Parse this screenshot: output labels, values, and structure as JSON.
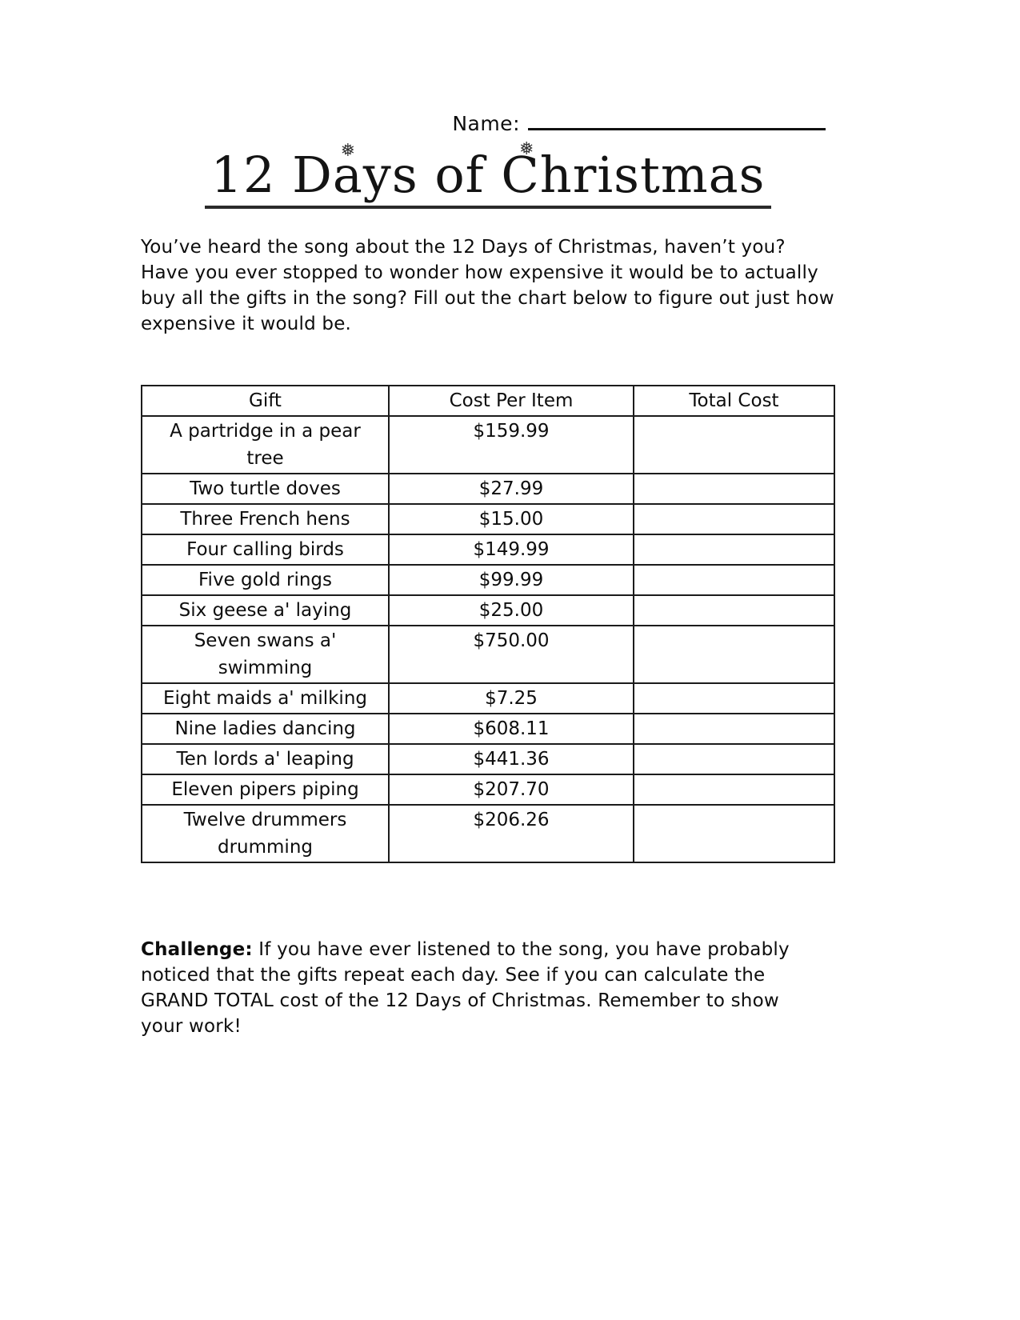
{
  "header": {
    "name_label": "Name:",
    "title": "12 Days of Christmas"
  },
  "decorations": {
    "snowflake_icon": "❅"
  },
  "intro": "You’ve heard the song about the 12 Days of Christmas, haven’t you? Have you ever stopped to wonder how expensive it would be to actually buy all the gifts in the song? Fill out the chart below to figure out just how expensive it would be.",
  "table": {
    "headers": [
      "Gift",
      "Cost Per Item",
      "Total Cost"
    ],
    "rows": [
      {
        "gift": "A partridge in a pear tree",
        "cost": "$159.99",
        "total": ""
      },
      {
        "gift": "Two turtle doves",
        "cost": "$27.99",
        "total": ""
      },
      {
        "gift": "Three French hens",
        "cost": "$15.00",
        "total": ""
      },
      {
        "gift": "Four calling birds",
        "cost": "$149.99",
        "total": ""
      },
      {
        "gift": "Five gold rings",
        "cost": "$99.99",
        "total": ""
      },
      {
        "gift": "Six geese a' laying",
        "cost": "$25.00",
        "total": ""
      },
      {
        "gift": "Seven swans a' swimming",
        "cost": "$750.00",
        "total": ""
      },
      {
        "gift": "Eight maids a' milking",
        "cost": "$7.25",
        "total": ""
      },
      {
        "gift": "Nine ladies dancing",
        "cost": "$608.11",
        "total": ""
      },
      {
        "gift": "Ten lords a' leaping",
        "cost": "$441.36",
        "total": ""
      },
      {
        "gift": "Eleven pipers piping",
        "cost": "$207.70",
        "total": ""
      },
      {
        "gift": "Twelve drummers drumming",
        "cost": "$206.26",
        "total": ""
      }
    ]
  },
  "challenge": {
    "label": "Challenge:",
    "text": " If you have ever listened to the song, you have probably noticed that the gifts repeat each day. See if you can calculate the GRAND TOTAL cost of the 12 Days of Christmas.  Remember to show your work!"
  },
  "colors": {
    "ink": "#0d0d0d",
    "paper": "#ffffff"
  }
}
